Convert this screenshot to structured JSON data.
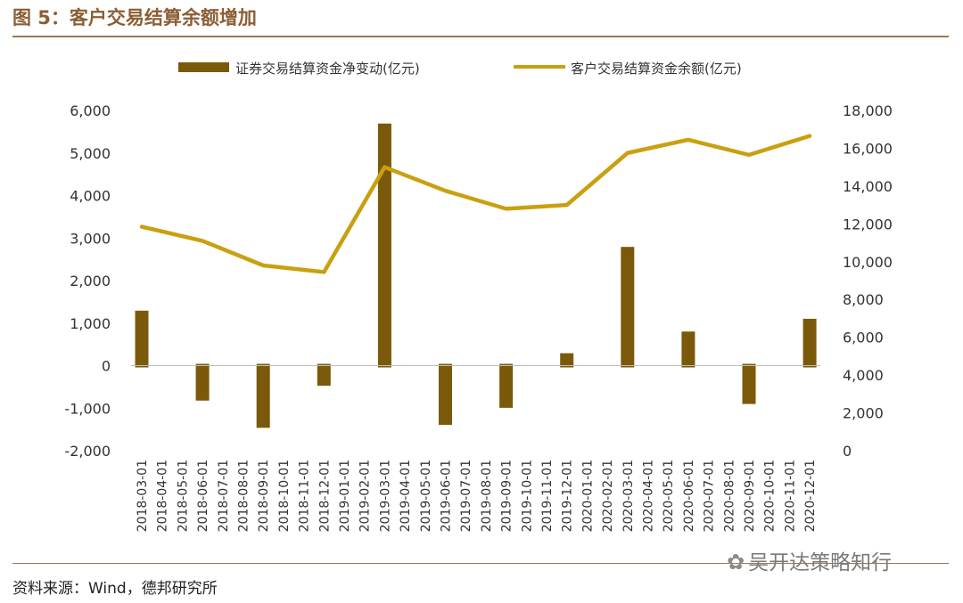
{
  "figure": {
    "title": "图 5：客户交易结算余额增加",
    "source": "资料来源：Wind，德邦研究所",
    "watermark": "吴开达策略知行",
    "watermark_icon": "wechat-icon"
  },
  "colors": {
    "bar": "#7A5A0A",
    "line": "#C9A00F",
    "rule": "#A0764E",
    "title": "#8B5E34"
  },
  "chart_data": {
    "type": "bar+line",
    "title": "",
    "xlabel": "",
    "ylabel": "",
    "legend_position": "top",
    "grid": false,
    "categories": [
      "2018-03-01",
      "2018-04-01",
      "2018-05-01",
      "2018-06-01",
      "2018-07-01",
      "2018-08-01",
      "2018-09-01",
      "2018-10-01",
      "2018-11-01",
      "2018-12-01",
      "2019-01-01",
      "2019-02-01",
      "2019-03-01",
      "2019-04-01",
      "2019-05-01",
      "2019-06-01",
      "2019-07-01",
      "2019-08-01",
      "2019-09-01",
      "2019-10-01",
      "2019-11-01",
      "2019-12-01",
      "2020-01-01",
      "2020-02-01",
      "2020-03-01",
      "2020-04-01",
      "2020-05-01",
      "2020-06-01",
      "2020-07-01",
      "2020-08-01",
      "2020-09-01",
      "2020-10-01",
      "2020-11-01",
      "2020-12-01"
    ],
    "left_axis": {
      "ylim": [
        -2000,
        6000
      ],
      "ticks": [
        "-2,000",
        "-1,000",
        "0",
        "1,000",
        "2,000",
        "3,000",
        "4,000",
        "5,000",
        "6,000"
      ],
      "tick_values": [
        -2000,
        -1000,
        0,
        1000,
        2000,
        3000,
        4000,
        5000,
        6000
      ]
    },
    "right_axis": {
      "ylim": [
        0,
        18000
      ],
      "ticks": [
        "0",
        "2,000",
        "4,000",
        "6,000",
        "8,000",
        "10,000",
        "12,000",
        "14,000",
        "16,000",
        "18,000"
      ],
      "tick_values": [
        0,
        2000,
        4000,
        6000,
        8000,
        10000,
        12000,
        14000,
        16000,
        18000
      ]
    },
    "series": [
      {
        "name": "证券交易结算资金净变动(亿元)",
        "type": "bar",
        "axis": "left",
        "x": [
          "2018-03-01",
          "2018-06-01",
          "2018-09-01",
          "2018-12-01",
          "2019-03-01",
          "2019-06-01",
          "2019-09-01",
          "2019-12-01",
          "2020-03-01",
          "2020-06-01",
          "2020-09-01",
          "2020-12-01"
        ],
        "values": [
          1250,
          -780,
          -1420,
          -430,
          5650,
          -1350,
          -950,
          250,
          2750,
          760,
          -860,
          1060
        ]
      },
      {
        "name": "客户交易结算资金余额(亿元)",
        "type": "line",
        "axis": "right",
        "x": [
          "2018-03-01",
          "2018-06-01",
          "2018-09-01",
          "2018-12-01",
          "2019-03-01",
          "2019-06-01",
          "2019-09-01",
          "2019-12-01",
          "2020-03-01",
          "2020-06-01",
          "2020-09-01",
          "2020-12-01"
        ],
        "values": [
          11850,
          11100,
          9800,
          9450,
          15000,
          13750,
          12800,
          13000,
          15750,
          16450,
          15650,
          16650
        ]
      }
    ]
  }
}
